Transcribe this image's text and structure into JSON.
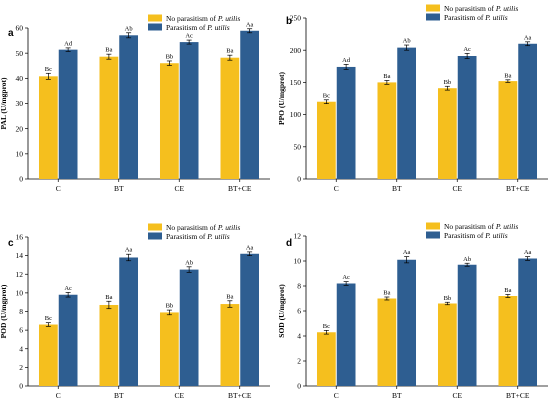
{
  "colors": {
    "no_parasitism": "#F5BF1E",
    "parasitism": "#2E5E91",
    "axis": "#000000"
  },
  "legend": {
    "no_parasitism_prefix": "No parasitism of ",
    "parasitism_prefix": "Parasitism of ",
    "species": "P. utilis"
  },
  "chart_data": [
    {
      "type": "bar",
      "panel": "a",
      "categories": [
        "C",
        "BT",
        "CE",
        "BT+CE"
      ],
      "ylabel": "PAL (U/mgprot)",
      "ylim": [
        0,
        60
      ],
      "ytick_step": 10,
      "legend_position": "top-right",
      "series": [
        {
          "name": "No parasitism of P. utilis",
          "values": [
            40.8,
            48.6,
            46.0,
            48.2
          ],
          "errors": [
            1.2,
            1.0,
            0.9,
            1.0
          ],
          "labels": [
            "Bc",
            "Ba",
            "Bb",
            "Ba"
          ]
        },
        {
          "name": "Parasitism of P. utilis",
          "values": [
            51.4,
            57.1,
            54.4,
            58.9
          ],
          "errors": [
            0.7,
            1.0,
            0.8,
            0.8
          ],
          "labels": [
            "Ad",
            "Ab",
            "Ac",
            "Aa"
          ]
        }
      ]
    },
    {
      "type": "bar",
      "panel": "b",
      "categories": [
        "C",
        "BT",
        "CE",
        "BT+CE"
      ],
      "ylabel": "PPO (U/mgprot)",
      "ylim": [
        0,
        250
      ],
      "ytick_step": 50,
      "legend_position": "top-right",
      "series": [
        {
          "name": "No parasitism of P. utilis",
          "values": [
            120,
            150,
            141,
            152
          ],
          "errors": [
            3,
            3,
            3,
            2
          ],
          "labels": [
            "Bc",
            "Ba",
            "Bb",
            "Ba"
          ]
        },
        {
          "name": "Parasitism of P. utilis",
          "values": [
            174,
            204,
            191,
            210
          ],
          "errors": [
            4,
            4,
            4,
            3
          ],
          "labels": [
            "Ad",
            "Ab",
            "Ac",
            "Aa"
          ]
        }
      ]
    },
    {
      "type": "bar",
      "panel": "c",
      "categories": [
        "C",
        "BT",
        "CE",
        "BT+CE"
      ],
      "ylabel": "POD (U/mgprot)",
      "ylim": [
        0,
        16
      ],
      "ytick_step": 2,
      "legend_position": "top-right",
      "series": [
        {
          "name": "No parasitism of P. utilis",
          "values": [
            6.6,
            8.7,
            7.9,
            8.8
          ],
          "errors": [
            0.2,
            0.4,
            0.25,
            0.35
          ],
          "labels": [
            "Bc",
            "Ba",
            "Bb",
            "Ba"
          ]
        },
        {
          "name": "Parasitism of P. utilis",
          "values": [
            9.8,
            13.8,
            12.5,
            14.2
          ],
          "errors": [
            0.25,
            0.35,
            0.3,
            0.2
          ],
          "labels": [
            "Ac",
            "Aa",
            "Ab",
            "Aa"
          ]
        }
      ]
    },
    {
      "type": "bar",
      "panel": "d",
      "categories": [
        "C",
        "BT",
        "CE",
        "BT+CE"
      ],
      "ylabel": "SOD (U/mgprot)",
      "ylim": [
        0,
        12
      ],
      "ytick_step": 2,
      "legend_position": "top-right",
      "series": [
        {
          "name": "No parasitism of P. utilis",
          "values": [
            4.3,
            7.0,
            6.6,
            7.2
          ],
          "errors": [
            0.15,
            0.12,
            0.1,
            0.12
          ],
          "labels": [
            "Bc",
            "Ba",
            "Bb",
            "Ba"
          ]
        },
        {
          "name": "Parasitism of P. utilis",
          "values": [
            8.2,
            10.1,
            9.7,
            10.2
          ],
          "errors": [
            0.15,
            0.25,
            0.12,
            0.15
          ],
          "labels": [
            "Ac",
            "Aa",
            "Ab",
            "Aa"
          ]
        }
      ]
    }
  ]
}
